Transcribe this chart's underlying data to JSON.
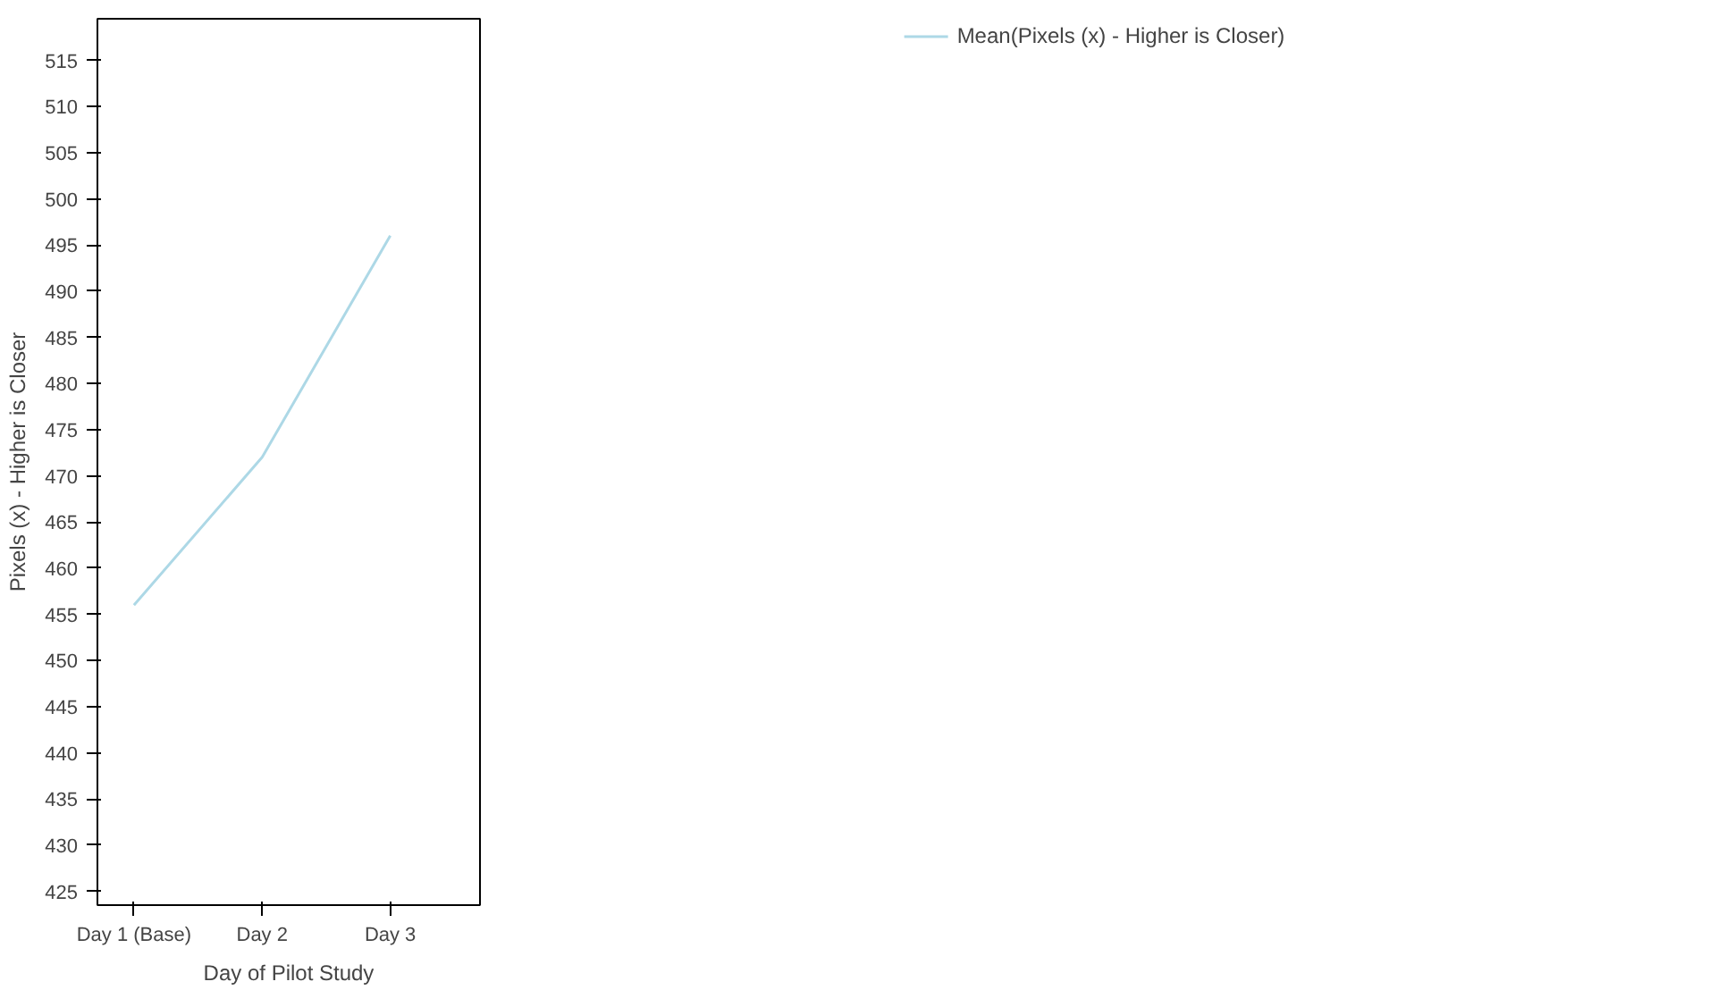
{
  "chart_data": {
    "type": "line",
    "xlabel": "Day of Pilot Study",
    "ylabel": "Pixels (x) - Higher is Closer",
    "categories": [
      "Day 1 (Base)",
      "Day 2",
      "Day 3"
    ],
    "series": [
      {
        "name": "Mean(Pixels (x) - Higher is Closer)",
        "color": "#add8e6",
        "values": [
          456,
          472,
          496
        ]
      }
    ],
    "ylim": [
      423.5,
      519.5
    ],
    "yticks": [
      425,
      430,
      435,
      440,
      445,
      450,
      455,
      460,
      465,
      470,
      475,
      480,
      485,
      490,
      495,
      500,
      505,
      510,
      515
    ],
    "grid": false,
    "legend": "top right",
    "marker": "none",
    "line_style": "solid"
  }
}
